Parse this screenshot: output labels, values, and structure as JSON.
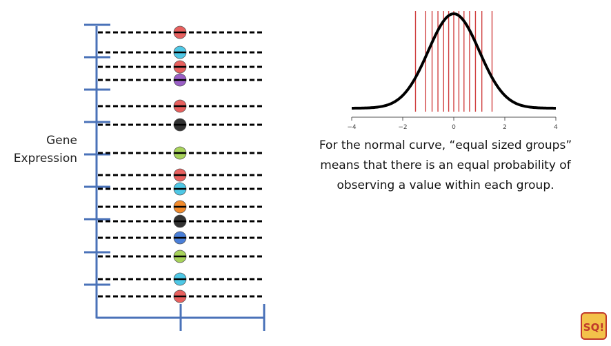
{
  "left_panel": {
    "ylabel_lines": [
      "Gene",
      "Expression"
    ],
    "point_colors": [
      "#e8605e",
      "#4fc8e6",
      "#e8605e",
      "#9a5fc6",
      "#e8605e",
      "#333333",
      "#a7d35a",
      "#e8605e",
      "#4fc8e6",
      "#f28b2c",
      "#333333",
      "#4a7fd8",
      "#a7d35a",
      "#4fc8e6",
      "#e8605e"
    ]
  },
  "right_panel": {
    "chart_data": {
      "type": "line",
      "x_ticks": [
        "−4",
        "−2",
        "0",
        "2",
        "4"
      ],
      "xlim": [
        -4,
        4
      ],
      "curve": "standard normal density",
      "line_color": "#000000",
      "cut_lines_x": [
        -1.5,
        -1.1,
        -0.85,
        -0.62,
        -0.4,
        -0.2,
        0.0,
        0.2,
        0.4,
        0.62,
        0.85,
        1.1,
        1.5
      ],
      "cut_line_color": "#d04040"
    },
    "caption_lines": [
      "For the normal curve, “equal sized groups”",
      "means that there is an equal probability of",
      "observing a value within each group."
    ]
  },
  "logo": {
    "text": "SQ!"
  }
}
